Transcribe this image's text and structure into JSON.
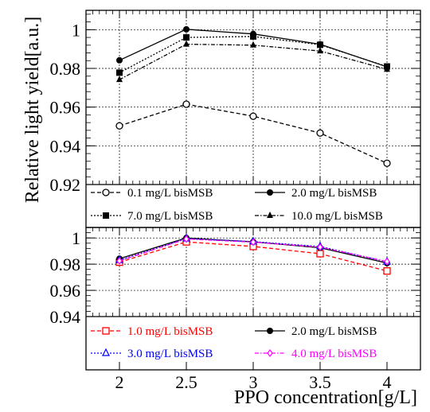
{
  "chart_data": {
    "type": "line",
    "ylabel": "Relative light yield[a.u.]",
    "xlabel": "PPO concentration[g/L]",
    "x": [
      2,
      2.5,
      3,
      3.5,
      4
    ],
    "x_tick_labels": [
      "2",
      "2.5",
      "3",
      "3.5",
      "4"
    ],
    "xlim": [
      1.75,
      4.25
    ],
    "grid": true,
    "panels": [
      {
        "ylim": [
          0.92,
          1.01
        ],
        "y_ticks": [
          0.92,
          0.94,
          0.96,
          0.98,
          1
        ],
        "y_tick_labels": [
          "0.92",
          "0.94",
          "0.96",
          "0.98",
          "1"
        ],
        "legend_position": "bottom",
        "series": [
          {
            "name": "0.1 mg/L bisMSB",
            "values": [
              0.9503,
              0.9615,
              0.9553,
              0.9466,
              0.931
            ],
            "color": "#000000",
            "marker": "open-circle",
            "dash": "dashed"
          },
          {
            "name": "2.0 mg/L bisMSB",
            "values": [
              0.9842,
              1.0002,
              0.9978,
              0.9925,
              0.9808
            ],
            "color": "#000000",
            "marker": "filled-circle",
            "dash": "solid"
          },
          {
            "name": "7.0 mg/L bisMSB",
            "values": [
              0.9778,
              0.996,
              0.9965,
              0.9922,
              0.981
            ],
            "color": "#000000",
            "marker": "filled-square",
            "dash": "dotted"
          },
          {
            "name": "10.0 mg/L bisMSB",
            "values": [
              0.9742,
              0.9925,
              0.992,
              0.989,
              0.9795
            ],
            "color": "#000000",
            "marker": "filled-triangle",
            "dash": "dashdot"
          }
        ]
      },
      {
        "ylim": [
          0.94,
          1.008
        ],
        "y_ticks": [
          0.94,
          0.96,
          0.98,
          1
        ],
        "y_tick_labels": [
          "0.94",
          "0.96",
          "0.98",
          "1"
        ],
        "legend_position": "bottom",
        "series": [
          {
            "name": "1.0 mg/L bisMSB",
            "values": [
              0.9815,
              0.997,
              0.9935,
              0.988,
              0.9748
            ],
            "color": "#ff0000",
            "marker": "open-square",
            "dash": "dashed"
          },
          {
            "name": "2.0 mg/L bisMSB",
            "values": [
              0.9842,
              1.0,
              0.997,
              0.9925,
              0.9808
            ],
            "color": "#000000",
            "marker": "filled-circle",
            "dash": "solid"
          },
          {
            "name": "3.0 mg/L bisMSB",
            "values": [
              0.983,
              0.9995,
              0.9972,
              0.9935,
              0.9818
            ],
            "color": "#0000ff",
            "marker": "open-triangle",
            "dash": "dotted"
          },
          {
            "name": "4.0 mg/L bisMSB",
            "values": [
              0.9825,
              0.9992,
              0.9968,
              0.993,
              0.982
            ],
            "color": "#ff00ff",
            "marker": "open-diamond",
            "dash": "dashdot"
          }
        ]
      }
    ]
  }
}
